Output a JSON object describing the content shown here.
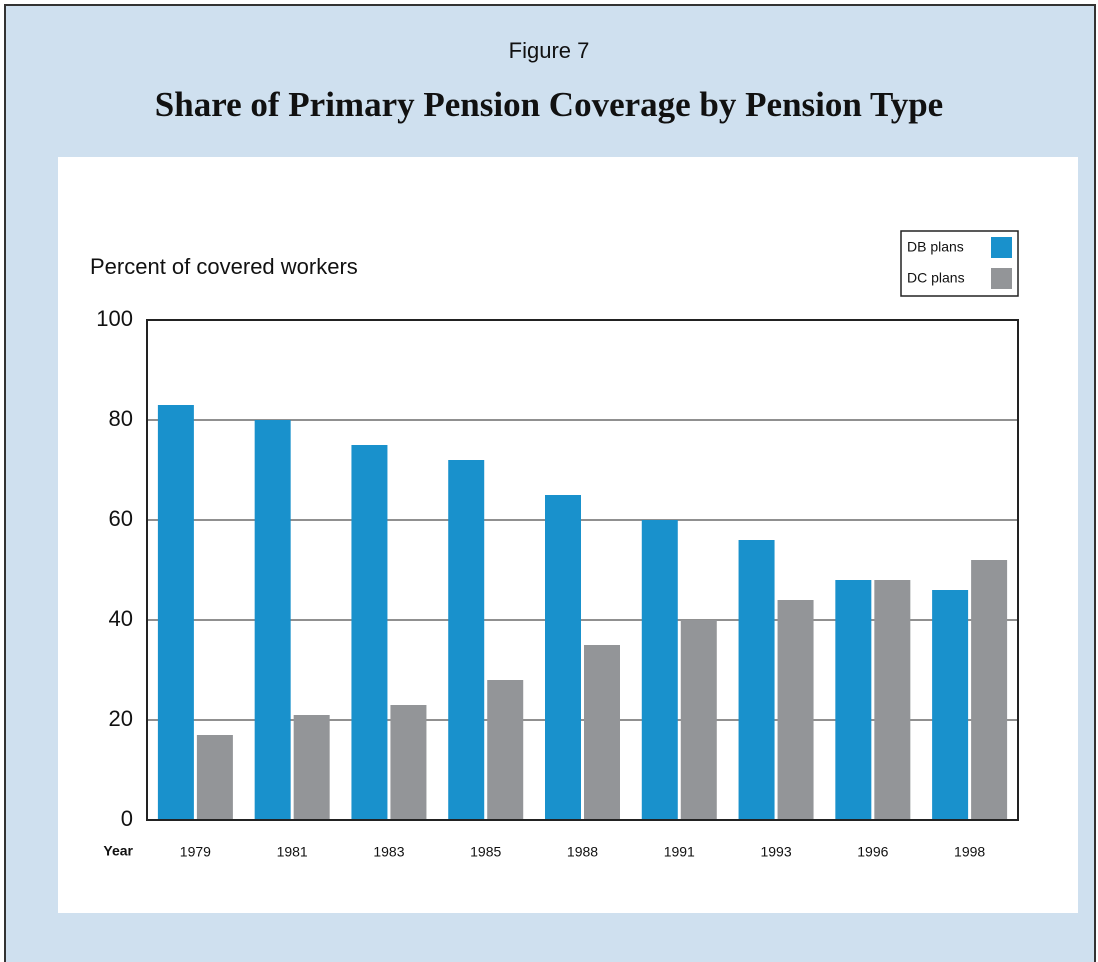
{
  "chart_data": {
    "type": "bar",
    "figure_label": "Figure 7",
    "title": "Share of Primary Pension Coverage by Pension Type",
    "y_label": "Percent of covered workers",
    "x_label": "Year",
    "categories": [
      "1979",
      "1981",
      "1983",
      "1985",
      "1988",
      "1991",
      "1993",
      "1996",
      "1998"
    ],
    "series": [
      {
        "name": "DB plans",
        "color": "#1991cc",
        "values": [
          83,
          80,
          75,
          72,
          65,
          60,
          56,
          48,
          46
        ]
      },
      {
        "name": "DC plans",
        "color": "#939598",
        "values": [
          17,
          21,
          23,
          28,
          35,
          40,
          44,
          48,
          52
        ]
      }
    ],
    "ylim": [
      0,
      100
    ],
    "yticks": [
      0,
      20,
      40,
      60,
      80,
      100
    ],
    "grid": true,
    "legend": "top-right"
  }
}
